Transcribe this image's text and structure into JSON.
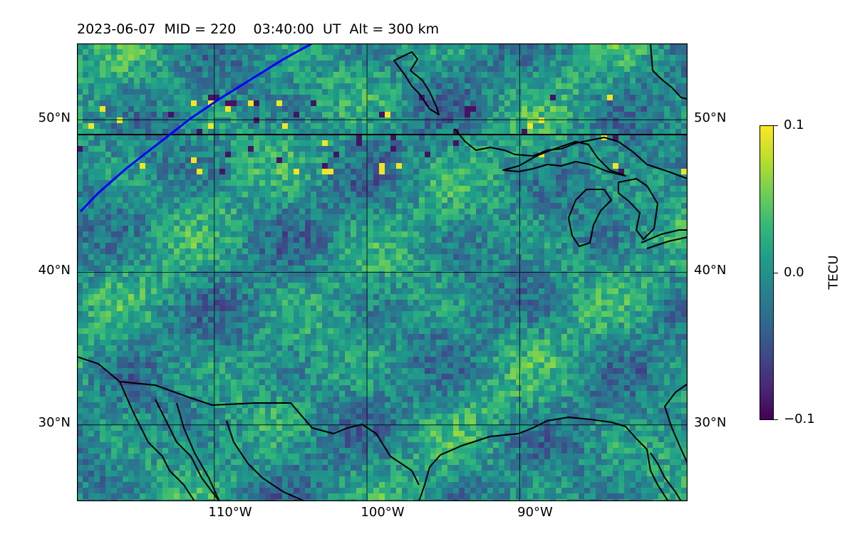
{
  "figure": {
    "title": "2023-06-07  MID = 220    03:40:00  UT  Alt = 300 km"
  },
  "map": {
    "extent": {
      "lon_min": -119,
      "lon_max": -79,
      "lat_min": 25,
      "lat_max": 55
    },
    "lat_ticks": [
      {
        "value": 50,
        "label": "50°N"
      },
      {
        "value": 40,
        "label": "40°N"
      },
      {
        "value": 30,
        "label": "30°N"
      }
    ],
    "lon_ticks": [
      {
        "value": -110,
        "label": "110°W"
      },
      {
        "value": -100,
        "label": "100°W"
      },
      {
        "value": -90,
        "label": "90°W"
      }
    ],
    "gridlines": true,
    "coastlines": true,
    "overlay_line_color": "#0000ff"
  },
  "colorbar": {
    "label": "TECU",
    "colormap": "viridis",
    "vmin": -0.1,
    "vmax": 0.1,
    "ticks": [
      {
        "value": 0.1,
        "label": "0.1"
      },
      {
        "value": 0.0,
        "label": "0.0"
      },
      {
        "value": -0.1,
        "label": "−0.1"
      }
    ]
  }
}
